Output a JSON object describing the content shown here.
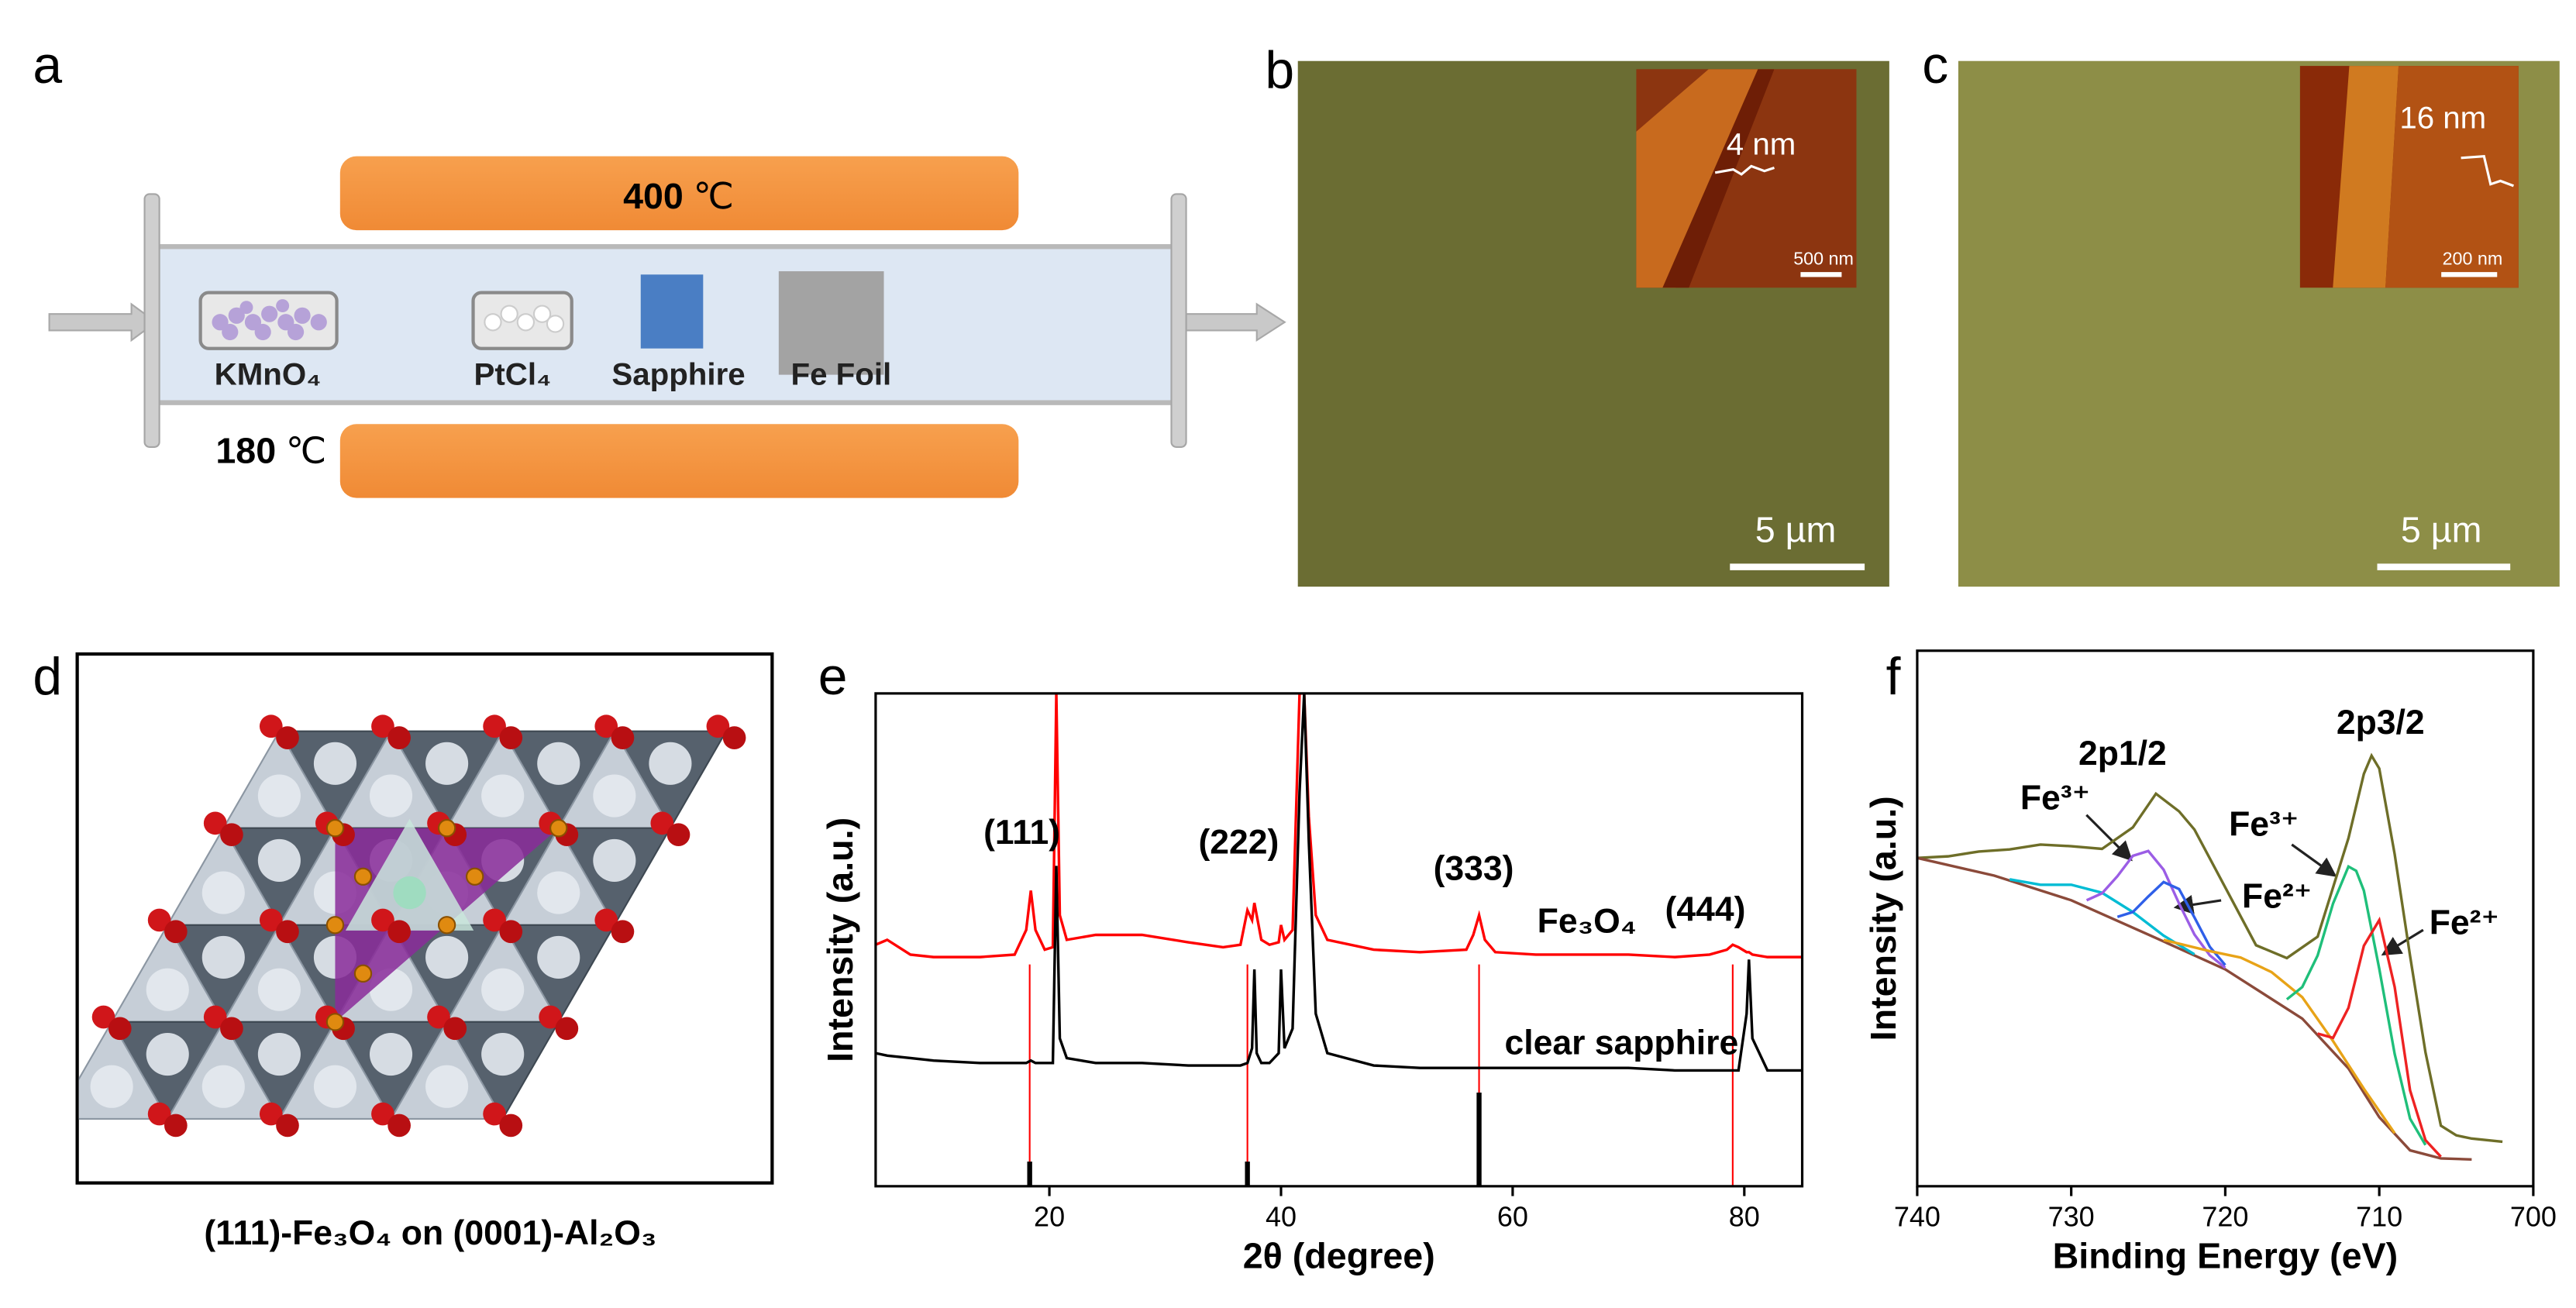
{
  "panel_labels": [
    "a",
    "b",
    "c",
    "d",
    "e",
    "f"
  ],
  "furnace": {
    "top_heater": {
      "temperature": "400",
      "unit": "℃"
    },
    "bottom_heater": {
      "temperature": "180",
      "unit": "℃"
    },
    "items": [
      "KMnO₄",
      "PtCl₄",
      "Sapphire",
      "Fe Foil"
    ]
  },
  "micrographs": [
    {
      "scale_bar": "5 µm",
      "inset_height": "4 nm",
      "inset_scale_bar": "500 nm"
    },
    {
      "scale_bar": "5 µm",
      "inset_height": "16 nm",
      "inset_scale_bar": "200 nm"
    }
  ],
  "structure": {
    "caption": "(111)-Fe₃O₄ on (0001)-Al₂O₃"
  },
  "chart_data": [
    {
      "type": "line",
      "x_label": "2θ (degree)",
      "y_label": "Intensity (a.u.)",
      "xlim": [
        5,
        85
      ],
      "xticks": [
        20,
        40,
        60,
        80
      ],
      "ylim": [
        0,
        100
      ],
      "x": [
        5,
        6,
        8,
        10,
        14,
        17,
        18,
        18.4,
        18.8,
        19.6,
        20.3,
        20.6,
        20.9,
        21.5,
        24,
        28,
        32,
        35,
        36.5,
        37.1,
        37.5,
        37.7,
        37.9,
        38.3,
        39,
        39.8,
        40,
        40.3,
        41,
        41.6,
        42,
        42.4,
        43,
        44,
        48,
        52,
        56,
        56.6,
        57.1,
        57.6,
        58.5,
        62,
        66,
        70,
        74,
        77,
        78.5,
        79,
        79.5,
        80.2,
        80.4,
        80.7,
        82,
        85
      ],
      "series": [
        {
          "color": "#ff0000",
          "values": [
            49,
            50,
            47,
            46.5,
            46.5,
            47,
            52,
            60,
            52,
            48,
            48.5,
            100,
            55,
            50,
            51,
            51,
            49.5,
            48.5,
            49,
            56,
            54,
            57.5,
            55,
            50,
            49,
            49.5,
            53,
            50,
            52,
            100,
            100,
            75,
            55,
            50,
            48,
            47.5,
            48,
            51,
            55,
            50,
            47.5,
            47,
            47,
            47,
            46.5,
            47,
            48,
            49,
            48.5,
            47.5,
            47.5,
            47,
            46.5,
            46.5
          ]
        },
        {
          "color": "#000000",
          "values": [
            27,
            26.5,
            26,
            25.5,
            25,
            25,
            25,
            25.5,
            25,
            25,
            25,
            65,
            30,
            26,
            25,
            25,
            24.5,
            24.5,
            24.5,
            25,
            28,
            44,
            27,
            25,
            25,
            27,
            44,
            28,
            32,
            80,
            100,
            70,
            35,
            27,
            24.5,
            24,
            24,
            24,
            24,
            24,
            24,
            24,
            24,
            24,
            23.5,
            23.5,
            23.5,
            23.5,
            23.5,
            35,
            46,
            30,
            23.5,
            23.5
          ]
        }
      ],
      "reference_peaks": {
        "color": "#000000",
        "x": [
          18.3,
          37.1,
          57.1
        ],
        "values": [
          5,
          5,
          19
        ]
      },
      "guide_lines": {
        "color": "#ff0000",
        "x": [
          18.3,
          37.1,
          57.1,
          79
        ]
      },
      "annotations": [
        "(111)",
        "(222)",
        "(333)",
        "Fe₃O₄",
        "(444)",
        "clear sapphire"
      ]
    },
    {
      "type": "line",
      "x_label": "Binding Energy (eV)",
      "y_label": "Intensity (a.u.)",
      "xlim": [
        740,
        700
      ],
      "xticks": [
        740,
        730,
        720,
        710,
        700
      ],
      "ylim": [
        0,
        100
      ],
      "series": [
        {
          "color": "#6e6e28",
          "x": [
            740,
            738,
            736,
            734,
            732,
            730,
            728,
            726,
            724.5,
            723,
            722,
            720,
            718,
            716,
            714,
            712,
            711,
            710.5,
            710,
            709,
            708,
            707,
            706,
            705,
            704,
            702
          ],
          "values": [
            61.3,
            61.6,
            62.5,
            62.9,
            63.8,
            63.5,
            63,
            67,
            73.3,
            70,
            66.6,
            55.8,
            45,
            42.6,
            46.6,
            65,
            77,
            80.4,
            78,
            62,
            43,
            25,
            11.3,
            9.5,
            8.9,
            8.3
          ]
        },
        {
          "color": "#8b4a3a",
          "x": [
            740,
            735,
            730,
            725,
            720,
            715,
            712,
            710,
            708,
            706,
            704
          ],
          "values": [
            61.3,
            58,
            53.4,
            47,
            40.5,
            31.3,
            22,
            12.9,
            6.7,
            5.2,
            5
          ]
        },
        {
          "color": "#00bcd4",
          "x": [
            734,
            732,
            730,
            728,
            726,
            724,
            722
          ],
          "values": [
            57.3,
            56.3,
            56.3,
            54.8,
            51.2,
            46.8,
            43.3
          ]
        },
        {
          "color": "#9b5de5",
          "x": [
            729,
            728,
            727,
            726,
            725,
            724,
            723,
            722,
            721,
            720
          ],
          "values": [
            53.4,
            54.7,
            57.9,
            61.7,
            62.6,
            59.1,
            52.8,
            47,
            43.1,
            40.8
          ]
        },
        {
          "color": "#2f5fe8",
          "x": [
            727,
            726,
            725,
            724,
            723,
            722,
            721,
            720
          ],
          "values": [
            50.3,
            51.2,
            54.1,
            56.8,
            55.5,
            50.2,
            44.7,
            41.3
          ]
        },
        {
          "color": "#e8a317",
          "x": [
            724,
            721,
            719,
            717,
            715,
            713,
            711,
            709
          ],
          "values": [
            46,
            43.9,
            42.7,
            40,
            35.3,
            27.1,
            18.2,
            9.9
          ]
        },
        {
          "color": "#1fbf7a",
          "x": [
            716,
            715,
            714,
            713,
            712,
            711.5,
            711,
            710,
            709,
            708,
            707
          ],
          "values": [
            34.9,
            37.2,
            43.1,
            52.8,
            59.7,
            58.9,
            55.2,
            40.6,
            24.7,
            12.6,
            7.7
          ]
        },
        {
          "color": "#ee2222",
          "x": [
            714,
            713,
            712,
            711,
            710,
            709,
            708,
            707,
            706
          ],
          "values": [
            28.5,
            27.7,
            33.3,
            44.9,
            49.7,
            37.2,
            17.9,
            8.6,
            5.5
          ]
        }
      ],
      "annotations": [
        "2p1/2",
        "2p3/2",
        "Fe³⁺",
        "Fe²⁺",
        "Fe³⁺",
        "Fe²⁺"
      ]
    }
  ]
}
